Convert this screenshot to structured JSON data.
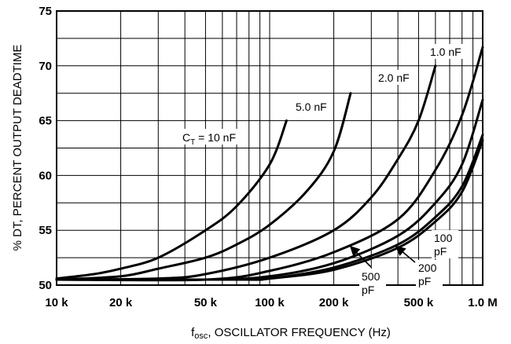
{
  "chart_data": {
    "type": "line",
    "title": "",
    "xlabel": "f",
    "xlabel_sub": "osc",
    "xlabel_rest": ", OSCILLATOR FREQUENCY (Hz)",
    "ylabel": "% DT, PERCENT OUTPUT DEADTIME",
    "x_scale": "log",
    "xlim": [
      10000,
      1000000
    ],
    "ylim": [
      50,
      75
    ],
    "grid": true,
    "x_ticks": [
      {
        "value": 10000,
        "label": "10 k"
      },
      {
        "value": 20000,
        "label": "20 k"
      },
      {
        "value": 50000,
        "label": "50 k"
      },
      {
        "value": 100000,
        "label": "100 k"
      },
      {
        "value": 200000,
        "label": "200 k"
      },
      {
        "value": 500000,
        "label": "500 k"
      },
      {
        "value": 1000000,
        "label": "1.0 M"
      }
    ],
    "y_ticks": [
      {
        "value": 50,
        "label": "50"
      },
      {
        "value": 55,
        "label": "55"
      },
      {
        "value": 60,
        "label": "60"
      },
      {
        "value": 65,
        "label": "65"
      },
      {
        "value": 70,
        "label": "70"
      },
      {
        "value": 75,
        "label": "75"
      }
    ],
    "series": [
      {
        "id": "ct10nF",
        "label": "C",
        "label_sub": "T",
        "label_rest": " = 10 nF",
        "x": [
          10000,
          15000,
          20000,
          30000,
          50000,
          70000,
          100000,
          120000
        ],
        "y": [
          50.6,
          51.0,
          51.5,
          52.5,
          55.0,
          57.2,
          61.0,
          65.0
        ]
      },
      {
        "id": "ct5nF",
        "label": "5.0 nF",
        "x": [
          10000,
          20000,
          30000,
          50000,
          70000,
          100000,
          150000,
          200000,
          240000
        ],
        "y": [
          50.5,
          50.8,
          51.5,
          52.5,
          53.7,
          55.5,
          58.6,
          62.2,
          67.5
        ]
      },
      {
        "id": "ct2nF",
        "label": "2.0 nF",
        "x": [
          10000,
          30000,
          50000,
          100000,
          200000,
          300000,
          400000,
          500000,
          600000
        ],
        "y": [
          50.5,
          50.6,
          51.0,
          52.5,
          55.0,
          58.0,
          61.5,
          65.0,
          70.0
        ]
      },
      {
        "id": "ct1nF",
        "label": "1.0 nF",
        "x": [
          10000,
          50000,
          100000,
          200000,
          400000,
          600000,
          800000,
          1000000
        ],
        "y": [
          50.5,
          50.5,
          51.3,
          53.0,
          56.0,
          60.5,
          65.5,
          71.7
        ]
      },
      {
        "id": "ct500pF",
        "label": "500",
        "label2": "pF",
        "x": [
          10000,
          50000,
          100000,
          200000,
          400000,
          600000,
          800000,
          1000000
        ],
        "y": [
          50.5,
          50.5,
          50.8,
          52.0,
          54.5,
          57.5,
          61.0,
          66.9
        ]
      },
      {
        "id": "ct200pF",
        "label": "200",
        "label2": "pF",
        "x": [
          10000,
          70000,
          100000,
          200000,
          400000,
          600000,
          800000,
          1000000
        ],
        "y": [
          50.5,
          50.5,
          50.6,
          51.6,
          53.7,
          56.2,
          59.0,
          63.7
        ]
      },
      {
        "id": "ct100pF",
        "label": "100",
        "label2": "pF",
        "x": [
          10000,
          70000,
          100000,
          200000,
          400000,
          600000,
          800000,
          1000000
        ],
        "y": [
          50.5,
          50.5,
          50.6,
          51.4,
          53.4,
          55.8,
          58.5,
          63.2
        ]
      }
    ]
  }
}
